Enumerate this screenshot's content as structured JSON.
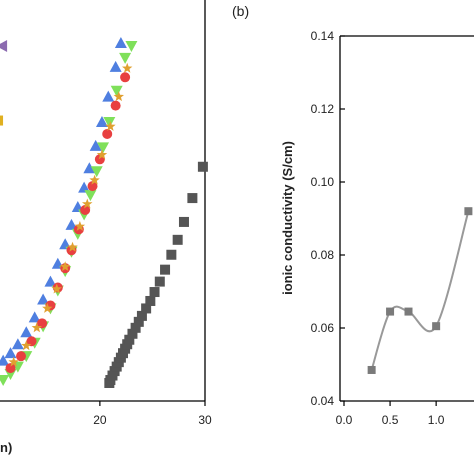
{
  "panel_label": "(b)",
  "chart_data": [
    {
      "type": "scatter",
      "title": "",
      "xlabel": "n)",
      "ylabel": "",
      "xlim": [
        10.5,
        30
      ],
      "xticks": [
        20,
        30
      ],
      "colors": {
        "dark": "#555555",
        "blue": "#4F7FE0",
        "green": "#7FE05A",
        "red": "#E84040",
        "orange": "#E0A030",
        "purple": "#8C6BB0"
      },
      "series": [
        {
          "marker": "square",
          "color": "#555555",
          "points": [
            [
              20.9,
              0.0
            ],
            [
              21.0,
              0.02
            ],
            [
              21.2,
              0.05
            ],
            [
              21.4,
              0.08
            ],
            [
              21.6,
              0.11
            ],
            [
              21.8,
              0.14
            ],
            [
              22.0,
              0.17
            ],
            [
              22.2,
              0.2
            ],
            [
              22.4,
              0.23
            ],
            [
              22.6,
              0.26
            ],
            [
              22.8,
              0.29
            ],
            [
              23.1,
              0.33
            ],
            [
              23.4,
              0.37
            ],
            [
              23.7,
              0.41
            ],
            [
              24.0,
              0.45
            ],
            [
              24.4,
              0.5
            ],
            [
              24.8,
              0.55
            ],
            [
              25.2,
              0.61
            ],
            [
              25.7,
              0.68
            ],
            [
              26.2,
              0.76
            ],
            [
              26.8,
              0.86
            ],
            [
              27.4,
              0.96
            ],
            [
              28.0,
              1.08
            ],
            [
              28.8,
              1.24
            ],
            [
              29.8,
              1.45
            ]
          ]
        },
        {
          "marker": "triangle-up",
          "color": "#4F7FE0",
          "points": [
            [
              10.8,
              0.15
            ],
            [
              11.5,
              0.2
            ],
            [
              12.2,
              0.26
            ],
            [
              13.0,
              0.34
            ],
            [
              13.8,
              0.44
            ],
            [
              14.6,
              0.56
            ],
            [
              15.3,
              0.68
            ],
            [
              16.0,
              0.8
            ],
            [
              16.7,
              0.93
            ],
            [
              17.3,
              1.06
            ],
            [
              17.9,
              1.18
            ],
            [
              18.5,
              1.31
            ],
            [
              19.0,
              1.44
            ],
            [
              19.6,
              1.59
            ],
            [
              20.2,
              1.75
            ],
            [
              20.8,
              1.92
            ],
            [
              21.5,
              2.12
            ],
            [
              22.0,
              2.28
            ]
          ]
        },
        {
          "marker": "triangle-down",
          "color": "#7FE05A",
          "points": [
            [
              10.8,
              0.02
            ],
            [
              11.5,
              0.06
            ],
            [
              12.2,
              0.11
            ],
            [
              13.0,
              0.18
            ],
            [
              13.8,
              0.27
            ],
            [
              14.6,
              0.38
            ],
            [
              15.3,
              0.5
            ],
            [
              16.0,
              0.62
            ],
            [
              16.7,
              0.75
            ],
            [
              17.3,
              0.88
            ],
            [
              17.9,
              1.0
            ],
            [
              18.5,
              1.13
            ],
            [
              19.1,
              1.26
            ],
            [
              19.7,
              1.42
            ],
            [
              20.3,
              1.58
            ],
            [
              20.9,
              1.75
            ],
            [
              21.6,
              1.96
            ],
            [
              22.4,
              2.18
            ],
            [
              23.0,
              2.26
            ]
          ]
        },
        {
          "marker": "circle",
          "color": "#E84040",
          "points": [
            [
              11.5,
              0.1
            ],
            [
              12.5,
              0.18
            ],
            [
              13.5,
              0.28
            ],
            [
              14.5,
              0.4
            ],
            [
              15.3,
              0.52
            ],
            [
              16.0,
              0.64
            ],
            [
              16.7,
              0.77
            ],
            [
              17.3,
              0.89
            ],
            [
              18.0,
              1.03
            ],
            [
              18.6,
              1.16
            ],
            [
              19.3,
              1.32
            ],
            [
              20.0,
              1.5
            ],
            [
              20.7,
              1.67
            ],
            [
              21.5,
              1.86
            ],
            [
              22.4,
              2.05
            ]
          ]
        },
        {
          "marker": "star",
          "color": "#E0A030",
          "points": [
            [
              11.8,
              0.14
            ],
            [
              13.0,
              0.25
            ],
            [
              14.0,
              0.37
            ],
            [
              15.0,
              0.5
            ],
            [
              15.9,
              0.63
            ],
            [
              16.7,
              0.78
            ],
            [
              17.4,
              0.91
            ],
            [
              18.1,
              1.05
            ],
            [
              18.8,
              1.2
            ],
            [
              19.5,
              1.36
            ],
            [
              20.2,
              1.53
            ],
            [
              21.0,
              1.72
            ],
            [
              21.8,
              1.92
            ],
            [
              22.6,
              2.11
            ]
          ]
        },
        {
          "marker": "triangle-left",
          "color": "#8C6BB0",
          "points": [
            [
              10.7,
              2.26
            ]
          ]
        },
        {
          "marker": "tri-yellow",
          "color": "#E0B020",
          "points": [
            [
              10.6,
              1.76
            ]
          ]
        }
      ]
    },
    {
      "type": "line",
      "title": "",
      "xlabel": "",
      "ylabel": "ionic conductivity (S/cm)",
      "xlim": [
        0.0,
        1.4
      ],
      "ylim": [
        0.04,
        0.14
      ],
      "xticks": [
        "0.0",
        "0.5",
        "1.0",
        "1"
      ],
      "yticks": [
        "0.04",
        "0.06",
        "0.08",
        "0.10",
        "0.12",
        "0.14"
      ],
      "line_color": "#999999",
      "marker_color": "#7A7A7A",
      "series": [
        {
          "x": [
            0.3,
            0.5,
            0.7,
            1.0,
            1.35
          ],
          "y": [
            0.0485,
            0.0645,
            0.0645,
            0.0605,
            0.092
          ]
        }
      ]
    }
  ]
}
